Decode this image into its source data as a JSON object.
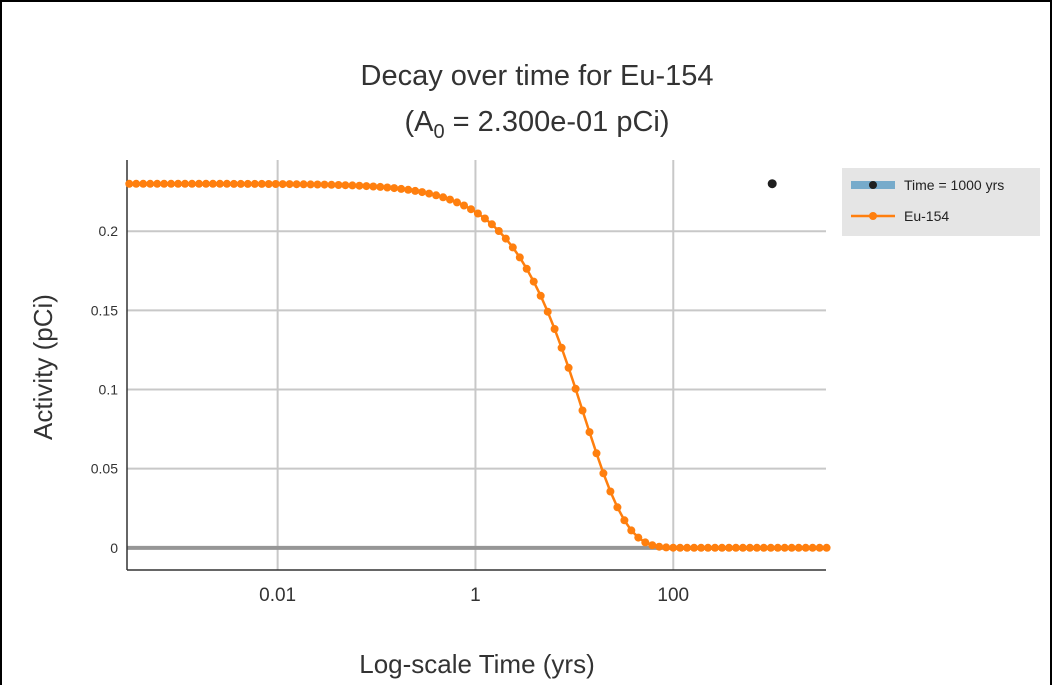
{
  "chart_data": {
    "type": "line",
    "title_line1": "Decay over time for Eu-154",
    "title_line2_prefix": "(A",
    "title_line2_subscript": "0",
    "title_line2_suffix": " = 2.300e-01 pCi)",
    "xlabel": "Log-scale Time (yrs)",
    "ylabel": "Activity (pCi)",
    "x_scale": "log",
    "xlim": [
      0.0003,
      3500
    ],
    "ylim": [
      -0.014,
      0.245
    ],
    "x_ticks": [
      {
        "value": 0.01,
        "label": "0.01"
      },
      {
        "value": 1,
        "label": "1"
      },
      {
        "value": 100,
        "label": "100"
      }
    ],
    "y_ticks": [
      {
        "value": 0,
        "label": "0"
      },
      {
        "value": 0.05,
        "label": "0.05"
      },
      {
        "value": 0.1,
        "label": "0.1"
      },
      {
        "value": 0.15,
        "label": "0.15"
      },
      {
        "value": 0.2,
        "label": "0.2"
      }
    ],
    "grid": true,
    "legend_position": "top-right",
    "series": [
      {
        "name": "Eu-154",
        "color": "#ff7f0e",
        "A0": 0.23,
        "half_life_years": 8.6,
        "log10_x_start": -3.5,
        "log10_x_end": 3.55,
        "n_points": 101
      },
      {
        "name": "Time = 1000 yrs",
        "color": "#1f1f1f",
        "band_color": "#5b9cc4",
        "points": [
          {
            "x": 1000,
            "y": 0.23
          }
        ]
      }
    ],
    "legend": [
      {
        "label": "Time = 1000 yrs"
      },
      {
        "label": "Eu-154"
      }
    ]
  }
}
